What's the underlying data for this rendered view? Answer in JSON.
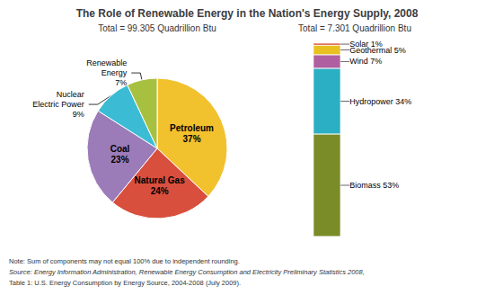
{
  "chart_data": [
    {
      "type": "pie",
      "title": "The Role of Renewable Energy in the Nation's Energy Supply, 2008",
      "subtitle": "Total = 99.305 Quadrillion Btu",
      "categories": [
        "Petroleum",
        "Natural Gas",
        "Coal",
        "Nuclear\nElectric Power",
        "Renewable\nEnergy"
      ],
      "values": [
        37,
        24,
        23,
        9,
        7
      ],
      "value_labels": [
        "37%",
        "24%",
        "23%",
        "9%",
        "7%"
      ],
      "colors": [
        "#F2C12E",
        "#D94F3D",
        "#9B7BB8",
        "#3BBCD4",
        "#A8C040"
      ],
      "data_labels": true,
      "annotations": [
        "Note: Sum of components may not equal 100% due to independent rounding.",
        "Source: Energy Information Administration, Renewable Energy Consumption and Electricity Preliminary Statistics 2008,",
        "Table 1: U.S. Energy Consumption by Energy Source, 2004-2008 (July 2009)."
      ]
    },
    {
      "type": "bar",
      "subtitle": "Total = 7.301 Quadrillion Btu",
      "stacked": true,
      "categories": [
        null
      ],
      "ylim": [
        0,
        100
      ],
      "tick_labels": false,
      "data_labels": true,
      "series": [
        {
          "color": "#7A8C28",
          "values": [
            53
          ],
          "value_labels": [
            "Biomass 53%"
          ]
        },
        {
          "color": "#2BAFC4",
          "values": [
            34
          ],
          "value_labels": [
            "Hydropower 34%"
          ]
        },
        {
          "color": "#B060A0",
          "values": [
            7
          ],
          "value_labels": [
            "Wind 7%"
          ]
        },
        {
          "color": "#E8C020",
          "values": [
            5
          ],
          "value_labels": [
            "Geothermal 5%"
          ]
        },
        {
          "color": "#CC2200",
          "values": [
            1
          ],
          "value_labels": [
            "Solar 1%"
          ]
        }
      ]
    }
  ]
}
